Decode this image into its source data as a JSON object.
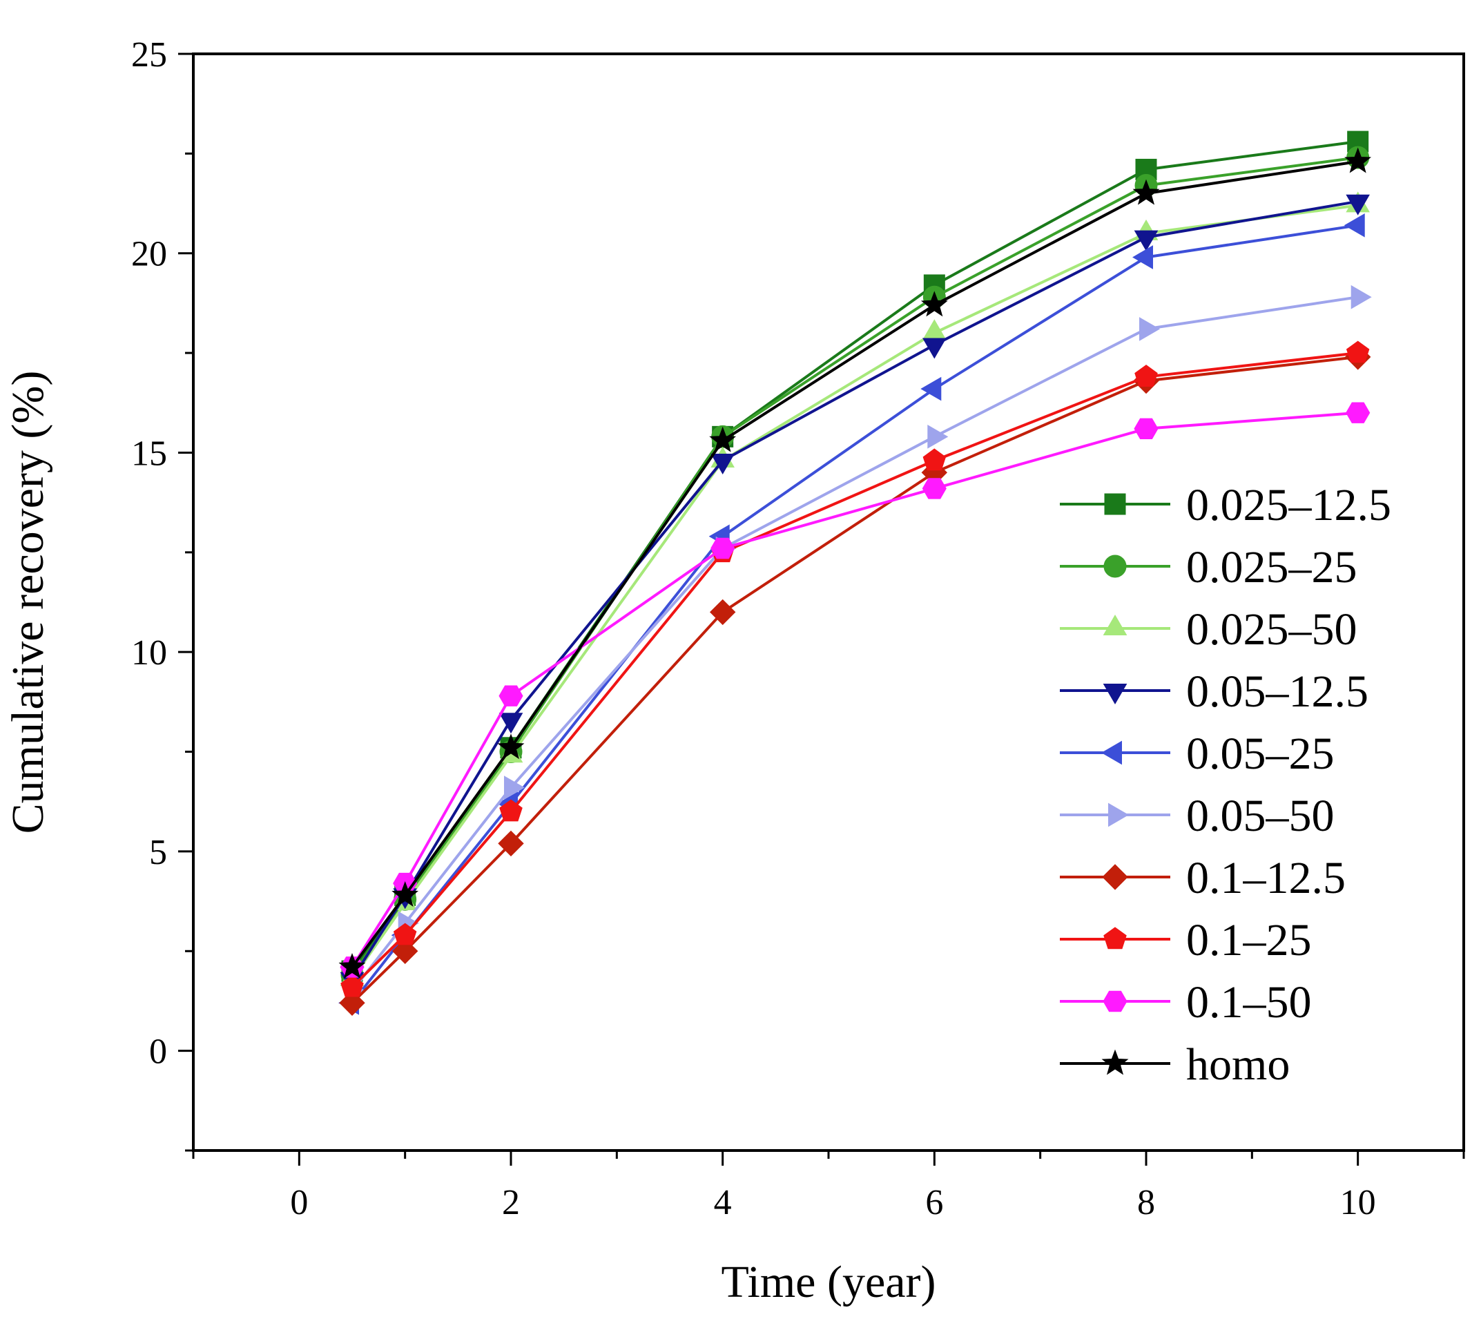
{
  "chart_data": {
    "type": "line",
    "title": "",
    "xlabel": "Time (year)",
    "ylabel": "Cumulative recovery (%)",
    "xlim": [
      -1,
      11
    ],
    "ylim": [
      -2.5,
      25
    ],
    "xticks": [
      0,
      2,
      4,
      6,
      8,
      10
    ],
    "xtick_labels": [
      "0",
      "2",
      "4",
      "6",
      "8",
      "10"
    ],
    "yticks": [
      0,
      5,
      10,
      15,
      20,
      25
    ],
    "ytick_labels": [
      "0",
      "5",
      "10",
      "15",
      "20",
      "25"
    ],
    "grid": false,
    "legend_position": "right",
    "x": [
      0.5,
      1,
      2,
      4,
      6,
      8,
      10
    ],
    "series": [
      {
        "name": "0.025–12.5",
        "color": "#1a7a1a",
        "marker": "square",
        "values": [
          2.0,
          3.9,
          7.6,
          15.4,
          19.2,
          22.1,
          22.8
        ]
      },
      {
        "name": "0.025–25",
        "color": "#3aa12a",
        "marker": "circle",
        "values": [
          1.9,
          3.8,
          7.5,
          15.4,
          18.9,
          21.7,
          22.4
        ]
      },
      {
        "name": "0.025–50",
        "color": "#a6e87a",
        "marker": "triangle-up",
        "values": [
          1.8,
          3.7,
          7.4,
          14.8,
          18.0,
          20.5,
          21.2
        ]
      },
      {
        "name": "0.05–12.5",
        "color": "#10148f",
        "marker": "triangle-down",
        "values": [
          1.8,
          3.9,
          8.3,
          14.8,
          17.7,
          20.4,
          21.3
        ]
      },
      {
        "name": "0.05–25",
        "color": "#3c4fd8",
        "marker": "triangle-left",
        "values": [
          1.2,
          2.9,
          6.2,
          12.9,
          16.6,
          19.9,
          20.7
        ]
      },
      {
        "name": "0.05–50",
        "color": "#9ea4ec",
        "marker": "triangle-right",
        "values": [
          1.5,
          3.2,
          6.6,
          12.6,
          15.4,
          18.1,
          18.9
        ]
      },
      {
        "name": "0.1–12.5",
        "color": "#c21f0a",
        "marker": "diamond",
        "values": [
          1.2,
          2.5,
          5.2,
          11.0,
          14.5,
          16.8,
          17.4
        ]
      },
      {
        "name": "0.1–25",
        "color": "#f01414",
        "marker": "pentagon",
        "values": [
          1.6,
          2.9,
          6.0,
          12.5,
          14.8,
          16.9,
          17.5
        ]
      },
      {
        "name": "0.1–50",
        "color": "#ff1aff",
        "marker": "hexagon",
        "values": [
          2.1,
          4.2,
          8.9,
          12.6,
          14.1,
          15.6,
          16.0
        ]
      },
      {
        "name": "homo",
        "color": "#000000",
        "marker": "star",
        "values": [
          2.1,
          3.9,
          7.6,
          15.3,
          18.7,
          21.5,
          22.3
        ]
      }
    ]
  }
}
